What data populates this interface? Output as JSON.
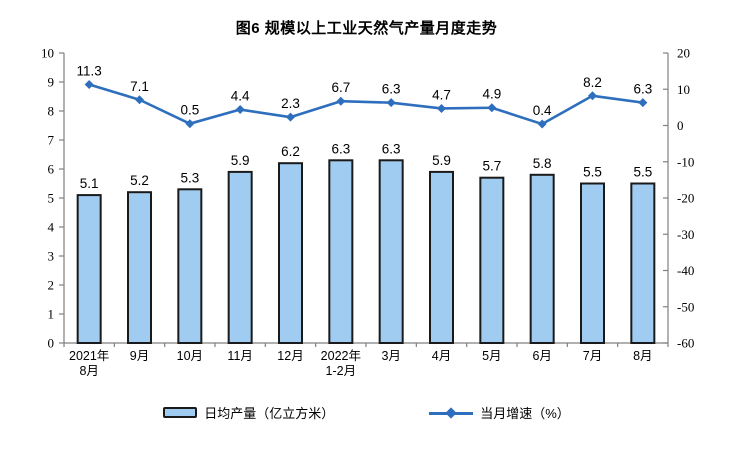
{
  "title": "图6 规模以上工业天然气产量月度走势",
  "chart_data": {
    "type": "bar+line",
    "categories": [
      [
        "2021年",
        "8月"
      ],
      [
        "9月"
      ],
      [
        "10月"
      ],
      [
        "11月"
      ],
      [
        "12月"
      ],
      [
        "2022年",
        "1-2月"
      ],
      [
        "3月"
      ],
      [
        "4月"
      ],
      [
        "5月"
      ],
      [
        "6月"
      ],
      [
        "7月"
      ],
      [
        "8月"
      ]
    ],
    "series": [
      {
        "name": "日均产量（亿立方米）",
        "type": "bar",
        "axis": "left",
        "values": [
          5.1,
          5.2,
          5.3,
          5.9,
          6.2,
          6.3,
          6.3,
          5.9,
          5.7,
          5.8,
          5.5,
          5.5
        ]
      },
      {
        "name": "当月增速（%）",
        "type": "line",
        "axis": "right",
        "values": [
          11.3,
          7.1,
          0.5,
          4.4,
          2.3,
          6.7,
          6.3,
          4.7,
          4.9,
          0.4,
          8.2,
          6.3
        ]
      }
    ],
    "left_axis": {
      "min": 0,
      "max": 10,
      "step": 1
    },
    "right_axis": {
      "min": -60,
      "max": 20,
      "step": 10
    },
    "grid": false,
    "legend_position": "bottom",
    "data_labels": true
  },
  "colors": {
    "bar_fill": "#A1CCF2",
    "bar_border": "#1A1A1A",
    "line": "#2E6FBD",
    "axis": "#808080",
    "text": "#000000"
  }
}
